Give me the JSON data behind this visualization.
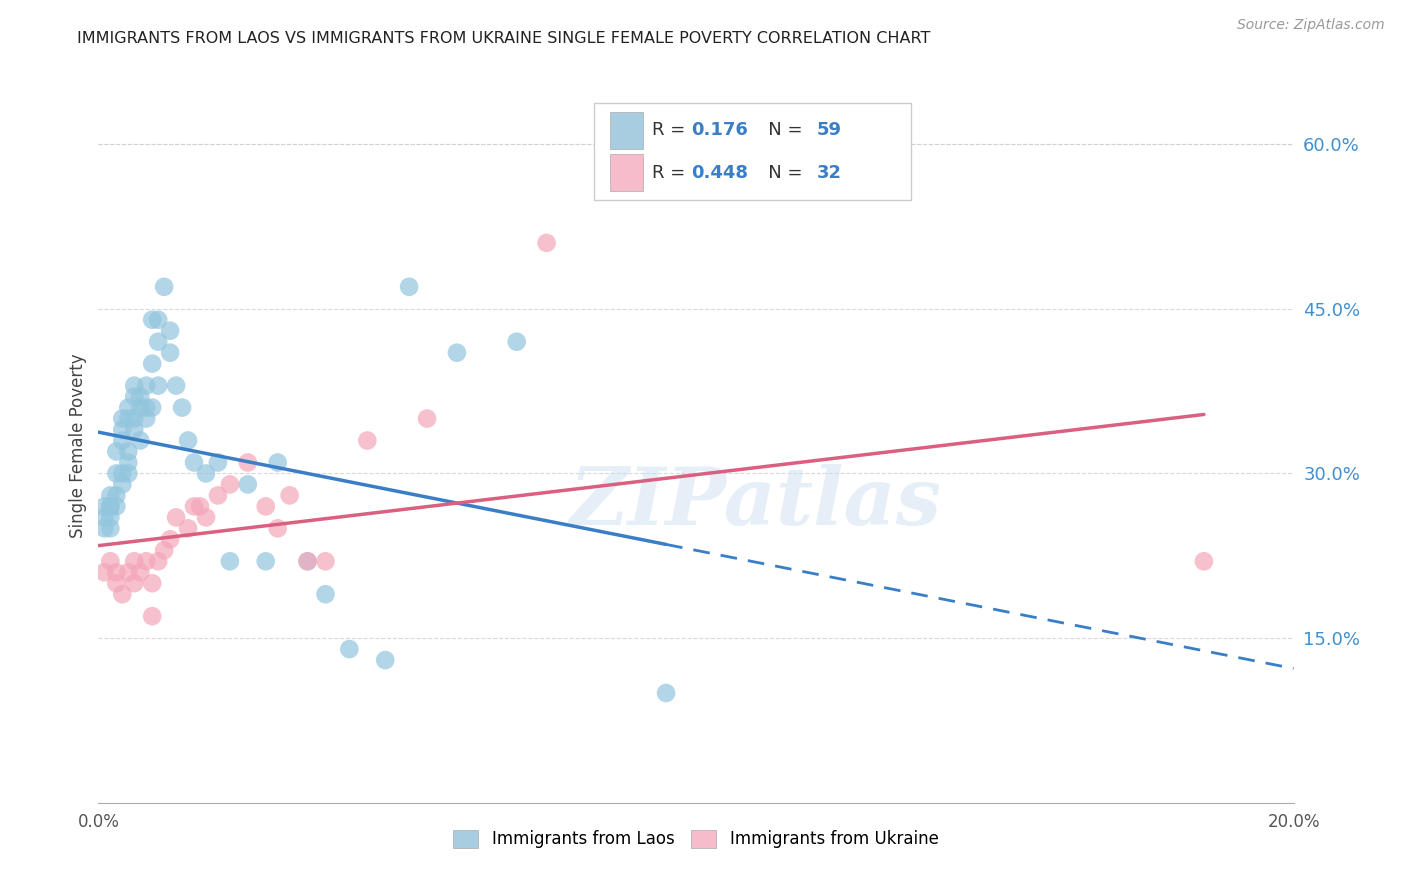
{
  "title": "IMMIGRANTS FROM LAOS VS IMMIGRANTS FROM UKRAINE SINGLE FEMALE POVERTY CORRELATION CHART",
  "source": "Source: ZipAtlas.com",
  "ylabel": "Single Female Poverty",
  "ylabel_right_ticks": [
    "60.0%",
    "45.0%",
    "30.0%",
    "15.0%"
  ],
  "ylabel_right_vals": [
    0.6,
    0.45,
    0.3,
    0.15
  ],
  "legend_label1": "Immigrants from Laos",
  "legend_label2": "Immigrants from Ukraine",
  "R1": "0.176",
  "N1": "59",
  "R2": "0.448",
  "N2": "32",
  "color_laos": "#92c5de",
  "color_ukraine": "#f4a6b8",
  "color_laos_line": "#3a7ec6",
  "color_ukraine_line": "#d96080",
  "color_laos_legend": "#a8cce0",
  "color_ukraine_legend": "#f7bccb",
  "laos_x": [
    0.001,
    0.001,
    0.001,
    0.002,
    0.002,
    0.002,
    0.002,
    0.002,
    0.003,
    0.003,
    0.003,
    0.003,
    0.004,
    0.004,
    0.004,
    0.004,
    0.004,
    0.005,
    0.005,
    0.005,
    0.005,
    0.005,
    0.006,
    0.006,
    0.006,
    0.006,
    0.007,
    0.007,
    0.007,
    0.008,
    0.008,
    0.008,
    0.009,
    0.009,
    0.009,
    0.01,
    0.01,
    0.01,
    0.011,
    0.012,
    0.012,
    0.013,
    0.014,
    0.015,
    0.016,
    0.018,
    0.02,
    0.022,
    0.025,
    0.028,
    0.03,
    0.035,
    0.038,
    0.042,
    0.048,
    0.052,
    0.06,
    0.07,
    0.095
  ],
  "laos_y": [
    0.26,
    0.27,
    0.25,
    0.28,
    0.27,
    0.26,
    0.27,
    0.25,
    0.3,
    0.28,
    0.32,
    0.27,
    0.35,
    0.34,
    0.3,
    0.33,
    0.29,
    0.36,
    0.35,
    0.32,
    0.31,
    0.3,
    0.38,
    0.37,
    0.35,
    0.34,
    0.37,
    0.36,
    0.33,
    0.38,
    0.35,
    0.36,
    0.44,
    0.4,
    0.36,
    0.44,
    0.42,
    0.38,
    0.47,
    0.43,
    0.41,
    0.38,
    0.36,
    0.33,
    0.31,
    0.3,
    0.31,
    0.22,
    0.29,
    0.22,
    0.31,
    0.22,
    0.19,
    0.14,
    0.13,
    0.47,
    0.41,
    0.42,
    0.1
  ],
  "ukraine_x": [
    0.001,
    0.002,
    0.003,
    0.003,
    0.004,
    0.005,
    0.006,
    0.006,
    0.007,
    0.008,
    0.009,
    0.009,
    0.01,
    0.011,
    0.012,
    0.013,
    0.015,
    0.016,
    0.017,
    0.018,
    0.02,
    0.022,
    0.025,
    0.028,
    0.03,
    0.032,
    0.035,
    0.038,
    0.045,
    0.055,
    0.075,
    0.185
  ],
  "ukraine_y": [
    0.21,
    0.22,
    0.2,
    0.21,
    0.19,
    0.21,
    0.22,
    0.2,
    0.21,
    0.22,
    0.2,
    0.17,
    0.22,
    0.23,
    0.24,
    0.26,
    0.25,
    0.27,
    0.27,
    0.26,
    0.28,
    0.29,
    0.31,
    0.27,
    0.25,
    0.28,
    0.22,
    0.22,
    0.33,
    0.35,
    0.51,
    0.22
  ],
  "xlim": [
    0.0,
    0.2
  ],
  "ylim": [
    0.0,
    0.65
  ],
  "watermark": "ZIPatlas",
  "background_color": "#ffffff",
  "grid_color": "#d0d0d0"
}
